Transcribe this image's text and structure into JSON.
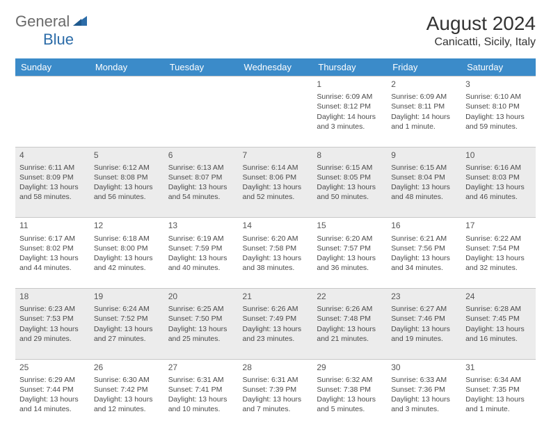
{
  "brand": {
    "general": "General",
    "blue": "Blue"
  },
  "title": "August 2024",
  "location": "Canicatti, Sicily, Italy",
  "colors": {
    "header_bg": "#3b8bc9",
    "header_text": "#ffffff",
    "alt_row_bg": "#ececec",
    "border": "#c7c7c7",
    "text": "#4a4a4a",
    "logo_gray": "#6a6a6a",
    "logo_blue": "#2c6ca8"
  },
  "days_of_week": [
    "Sunday",
    "Monday",
    "Tuesday",
    "Wednesday",
    "Thursday",
    "Friday",
    "Saturday"
  ],
  "weeks": [
    {
      "alt": false,
      "cells": [
        {
          "empty": true
        },
        {
          "empty": true
        },
        {
          "empty": true
        },
        {
          "empty": true
        },
        {
          "num": "1",
          "sunrise": "Sunrise: 6:09 AM",
          "sunset": "Sunset: 8:12 PM",
          "daylight": "Daylight: 14 hours and 3 minutes."
        },
        {
          "num": "2",
          "sunrise": "Sunrise: 6:09 AM",
          "sunset": "Sunset: 8:11 PM",
          "daylight": "Daylight: 14 hours and 1 minute."
        },
        {
          "num": "3",
          "sunrise": "Sunrise: 6:10 AM",
          "sunset": "Sunset: 8:10 PM",
          "daylight": "Daylight: 13 hours and 59 minutes."
        }
      ]
    },
    {
      "alt": true,
      "cells": [
        {
          "num": "4",
          "sunrise": "Sunrise: 6:11 AM",
          "sunset": "Sunset: 8:09 PM",
          "daylight": "Daylight: 13 hours and 58 minutes."
        },
        {
          "num": "5",
          "sunrise": "Sunrise: 6:12 AM",
          "sunset": "Sunset: 8:08 PM",
          "daylight": "Daylight: 13 hours and 56 minutes."
        },
        {
          "num": "6",
          "sunrise": "Sunrise: 6:13 AM",
          "sunset": "Sunset: 8:07 PM",
          "daylight": "Daylight: 13 hours and 54 minutes."
        },
        {
          "num": "7",
          "sunrise": "Sunrise: 6:14 AM",
          "sunset": "Sunset: 8:06 PM",
          "daylight": "Daylight: 13 hours and 52 minutes."
        },
        {
          "num": "8",
          "sunrise": "Sunrise: 6:15 AM",
          "sunset": "Sunset: 8:05 PM",
          "daylight": "Daylight: 13 hours and 50 minutes."
        },
        {
          "num": "9",
          "sunrise": "Sunrise: 6:15 AM",
          "sunset": "Sunset: 8:04 PM",
          "daylight": "Daylight: 13 hours and 48 minutes."
        },
        {
          "num": "10",
          "sunrise": "Sunrise: 6:16 AM",
          "sunset": "Sunset: 8:03 PM",
          "daylight": "Daylight: 13 hours and 46 minutes."
        }
      ]
    },
    {
      "alt": false,
      "cells": [
        {
          "num": "11",
          "sunrise": "Sunrise: 6:17 AM",
          "sunset": "Sunset: 8:02 PM",
          "daylight": "Daylight: 13 hours and 44 minutes."
        },
        {
          "num": "12",
          "sunrise": "Sunrise: 6:18 AM",
          "sunset": "Sunset: 8:00 PM",
          "daylight": "Daylight: 13 hours and 42 minutes."
        },
        {
          "num": "13",
          "sunrise": "Sunrise: 6:19 AM",
          "sunset": "Sunset: 7:59 PM",
          "daylight": "Daylight: 13 hours and 40 minutes."
        },
        {
          "num": "14",
          "sunrise": "Sunrise: 6:20 AM",
          "sunset": "Sunset: 7:58 PM",
          "daylight": "Daylight: 13 hours and 38 minutes."
        },
        {
          "num": "15",
          "sunrise": "Sunrise: 6:20 AM",
          "sunset": "Sunset: 7:57 PM",
          "daylight": "Daylight: 13 hours and 36 minutes."
        },
        {
          "num": "16",
          "sunrise": "Sunrise: 6:21 AM",
          "sunset": "Sunset: 7:56 PM",
          "daylight": "Daylight: 13 hours and 34 minutes."
        },
        {
          "num": "17",
          "sunrise": "Sunrise: 6:22 AM",
          "sunset": "Sunset: 7:54 PM",
          "daylight": "Daylight: 13 hours and 32 minutes."
        }
      ]
    },
    {
      "alt": true,
      "cells": [
        {
          "num": "18",
          "sunrise": "Sunrise: 6:23 AM",
          "sunset": "Sunset: 7:53 PM",
          "daylight": "Daylight: 13 hours and 29 minutes."
        },
        {
          "num": "19",
          "sunrise": "Sunrise: 6:24 AM",
          "sunset": "Sunset: 7:52 PM",
          "daylight": "Daylight: 13 hours and 27 minutes."
        },
        {
          "num": "20",
          "sunrise": "Sunrise: 6:25 AM",
          "sunset": "Sunset: 7:50 PM",
          "daylight": "Daylight: 13 hours and 25 minutes."
        },
        {
          "num": "21",
          "sunrise": "Sunrise: 6:26 AM",
          "sunset": "Sunset: 7:49 PM",
          "daylight": "Daylight: 13 hours and 23 minutes."
        },
        {
          "num": "22",
          "sunrise": "Sunrise: 6:26 AM",
          "sunset": "Sunset: 7:48 PM",
          "daylight": "Daylight: 13 hours and 21 minutes."
        },
        {
          "num": "23",
          "sunrise": "Sunrise: 6:27 AM",
          "sunset": "Sunset: 7:46 PM",
          "daylight": "Daylight: 13 hours and 19 minutes."
        },
        {
          "num": "24",
          "sunrise": "Sunrise: 6:28 AM",
          "sunset": "Sunset: 7:45 PM",
          "daylight": "Daylight: 13 hours and 16 minutes."
        }
      ]
    },
    {
      "alt": false,
      "cells": [
        {
          "num": "25",
          "sunrise": "Sunrise: 6:29 AM",
          "sunset": "Sunset: 7:44 PM",
          "daylight": "Daylight: 13 hours and 14 minutes."
        },
        {
          "num": "26",
          "sunrise": "Sunrise: 6:30 AM",
          "sunset": "Sunset: 7:42 PM",
          "daylight": "Daylight: 13 hours and 12 minutes."
        },
        {
          "num": "27",
          "sunrise": "Sunrise: 6:31 AM",
          "sunset": "Sunset: 7:41 PM",
          "daylight": "Daylight: 13 hours and 10 minutes."
        },
        {
          "num": "28",
          "sunrise": "Sunrise: 6:31 AM",
          "sunset": "Sunset: 7:39 PM",
          "daylight": "Daylight: 13 hours and 7 minutes."
        },
        {
          "num": "29",
          "sunrise": "Sunrise: 6:32 AM",
          "sunset": "Sunset: 7:38 PM",
          "daylight": "Daylight: 13 hours and 5 minutes."
        },
        {
          "num": "30",
          "sunrise": "Sunrise: 6:33 AM",
          "sunset": "Sunset: 7:36 PM",
          "daylight": "Daylight: 13 hours and 3 minutes."
        },
        {
          "num": "31",
          "sunrise": "Sunrise: 6:34 AM",
          "sunset": "Sunset: 7:35 PM",
          "daylight": "Daylight: 13 hours and 1 minute."
        }
      ]
    }
  ]
}
